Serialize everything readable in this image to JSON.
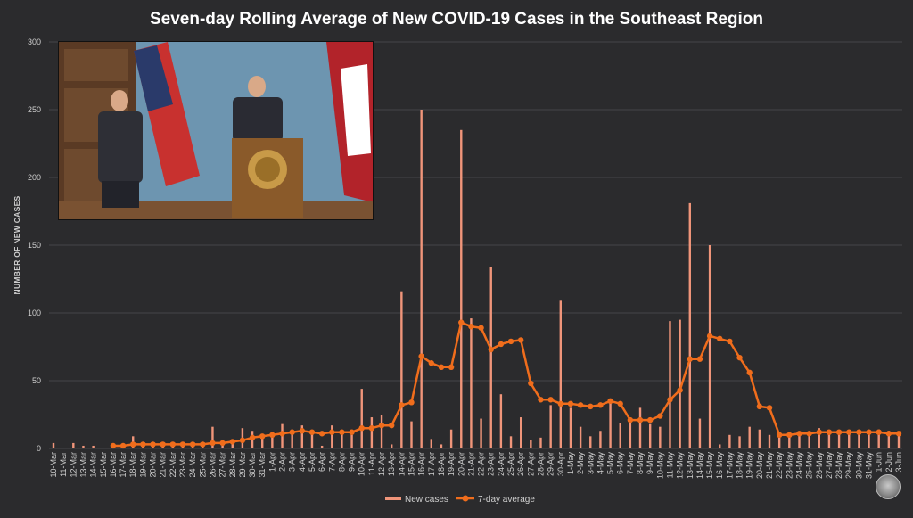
{
  "chart_data": {
    "type": "bar+line",
    "title": "Seven-day Rolling Average of New COVID-19 Cases in the Southeast Region",
    "ylabel": "NUMBER OF NEW CASES",
    "xlabel": "",
    "ylim": [
      0,
      300
    ],
    "yticks": [
      0,
      50,
      100,
      150,
      200,
      250,
      300
    ],
    "grid": "horizontal",
    "legend_position": "bottom-center",
    "categories": [
      "10-Mar",
      "11-Mar",
      "12-Mar",
      "13-Mar",
      "14-Mar",
      "15-Mar",
      "16-Mar",
      "17-Mar",
      "18-Mar",
      "19-Mar",
      "20-Mar",
      "21-Mar",
      "22-Mar",
      "23-Mar",
      "24-Mar",
      "25-Mar",
      "26-Mar",
      "27-Mar",
      "28-Mar",
      "29-Mar",
      "30-Mar",
      "31-Mar",
      "1-Apr",
      "2-Apr",
      "3-Apr",
      "4-Apr",
      "5-Apr",
      "6-Apr",
      "7-Apr",
      "8-Apr",
      "9-Apr",
      "10-Apr",
      "11-Apr",
      "12-Apr",
      "13-Apr",
      "14-Apr",
      "15-Apr",
      "16-Apr",
      "17-Apr",
      "18-Apr",
      "19-Apr",
      "20-Apr",
      "21-Apr",
      "22-Apr",
      "23-Apr",
      "24-Apr",
      "25-Apr",
      "26-Apr",
      "27-Apr",
      "28-Apr",
      "29-Apr",
      "30-Apr",
      "1-May",
      "2-May",
      "3-May",
      "4-May",
      "5-May",
      "6-May",
      "7-May",
      "8-May",
      "9-May",
      "10-May",
      "11-May",
      "12-May",
      "13-May",
      "14-May",
      "15-May",
      "16-May",
      "17-May",
      "18-May",
      "19-May",
      "20-May",
      "21-May",
      "22-May",
      "23-May",
      "24-May",
      "25-May",
      "26-May",
      "27-May",
      "28-May",
      "29-May",
      "30-May",
      "31-May",
      "1-Jun",
      "2-Jun",
      "3-Jun"
    ],
    "series": [
      {
        "name": "New cases",
        "type": "bar",
        "color": "#f0957a",
        "values": [
          4,
          0,
          4,
          2,
          2,
          0,
          0,
          3,
          9,
          2,
          3,
          2,
          3,
          3,
          2,
          3,
          16,
          3,
          5,
          15,
          13,
          8,
          11,
          18,
          14,
          17,
          13,
          2,
          17,
          12,
          10,
          44,
          23,
          25,
          3,
          116,
          20,
          250,
          7,
          3,
          14,
          235,
          96,
          22,
          134,
          40,
          9,
          23,
          6,
          8,
          32,
          109,
          30,
          16,
          9,
          13,
          34,
          19,
          20,
          30,
          18,
          16,
          94,
          95,
          181,
          22,
          150,
          3,
          10,
          9,
          16,
          14,
          10,
          8,
          9,
          10,
          12,
          15,
          13,
          13,
          12,
          12,
          12,
          14,
          13,
          12
        ]
      },
      {
        "name": "7-day average",
        "type": "line",
        "color": "#f06d1c",
        "values": [
          null,
          null,
          null,
          null,
          null,
          null,
          2,
          2,
          3,
          3,
          3,
          3,
          3,
          3,
          3,
          3,
          4,
          4,
          5,
          6,
          8,
          9,
          10,
          11,
          12,
          13,
          12,
          11,
          12,
          12,
          12,
          15,
          15,
          17,
          17,
          32,
          34,
          68,
          63,
          60,
          60,
          93,
          90,
          89,
          73,
          77,
          79,
          80,
          48,
          36,
          36,
          33,
          33,
          32,
          31,
          32,
          35,
          33,
          21,
          21,
          21,
          24,
          36,
          43,
          66,
          66,
          83,
          81,
          79,
          67,
          56,
          31,
          30,
          10,
          10,
          11,
          11,
          12,
          12,
          12,
          12,
          12,
          12,
          12,
          11,
          11
        ]
      }
    ]
  }
}
